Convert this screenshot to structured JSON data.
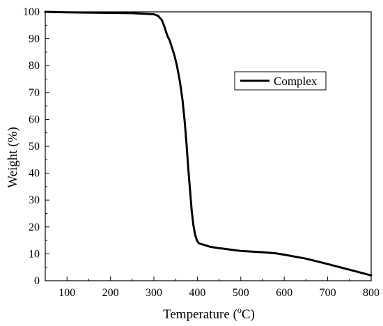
{
  "chart_data": {
    "type": "line",
    "xlabel": {
      "pre": "Temperature (",
      "sup": "o",
      "post": "C)"
    },
    "ylabel": "Weight (%)",
    "xlim": [
      50,
      800
    ],
    "ylim": [
      0,
      100
    ],
    "x_ticks": [
      100,
      200,
      300,
      400,
      500,
      600,
      700,
      800
    ],
    "y_ticks": [
      0,
      10,
      20,
      30,
      40,
      50,
      60,
      70,
      80,
      90,
      100
    ],
    "x_tick_labels": [
      "100",
      "200",
      "300",
      "400",
      "500",
      "600",
      "700",
      "800"
    ],
    "y_tick_labels": [
      "0",
      "10",
      "20",
      "30",
      "40",
      "50",
      "60",
      "70",
      "80",
      "90",
      "100"
    ],
    "legend": {
      "position": "right-middle",
      "entries": [
        "Complex"
      ]
    },
    "grid": false,
    "series": [
      {
        "name": "Complex",
        "color": "#000000",
        "x": [
          50,
          100,
          200,
          250,
          300,
          310,
          318,
          323,
          328,
          332,
          336,
          341,
          347,
          353,
          360,
          366,
          371,
          375,
          379,
          383,
          387,
          391,
          395,
          399,
          403,
          407,
          412,
          418,
          430,
          450,
          500,
          550,
          580,
          600,
          650,
          700,
          750,
          800
        ],
        "y": [
          100,
          99.8,
          99.6,
          99.5,
          99.1,
          98.5,
          97,
          95,
          92.5,
          90.7,
          89.5,
          87,
          84,
          80,
          74,
          67,
          59,
          51,
          42,
          34,
          26,
          20.5,
          17,
          15,
          14,
          13.7,
          13.5,
          13.2,
          12.6,
          12.1,
          11.1,
          10.6,
          10.2,
          9.7,
          8.2,
          6.2,
          4.1,
          2
        ]
      }
    ]
  }
}
